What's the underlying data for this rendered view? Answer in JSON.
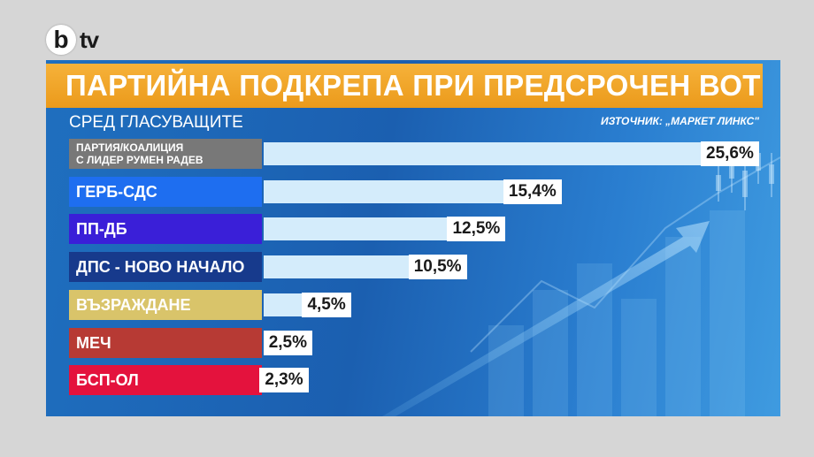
{
  "branding": {
    "logo_letter": "b",
    "logo_suffix": "tv"
  },
  "chart_data": {
    "type": "bar",
    "orientation": "horizontal",
    "title": "ПАРТИЙНА ПОДКРЕПА ПРИ ПРЕДСРОЧЕН ВОТ",
    "subtitle": "СРЕД ГЛАСУВАЩИТЕ",
    "source": "ИЗТОЧНИК: „МАРКЕТ ЛИНКС\"",
    "xlim": [
      0,
      25.6
    ],
    "categories": [
      "ПАРТИЯ/КОАЛИЦИЯ С ЛИДЕР РУМЕН РАДЕВ",
      "ГЕРБ-СДС",
      "ПП-ДБ",
      "ДПС - НОВО НАЧАЛО",
      "ВЪЗРАЖДАНЕ",
      "МЕЧ",
      "БСП-ОЛ"
    ],
    "values": [
      25.6,
      15.4,
      12.5,
      10.5,
      4.5,
      2.5,
      2.3
    ],
    "value_labels": [
      "25,6%",
      "15,4%",
      "12,5%",
      "10,5%",
      "4,5%",
      "2,5%",
      "2,3%"
    ],
    "label_lines": [
      [
        "ПАРТИЯ/КОАЛИЦИЯ",
        "С ЛИДЕР РУМЕН РАДЕВ"
      ],
      [
        "ГЕРБ-СДС"
      ],
      [
        "ПП-ДБ"
      ],
      [
        "ДПС - НОВО НАЧАЛО"
      ],
      [
        "ВЪЗРАЖДАНЕ"
      ],
      [
        "МЕЧ"
      ],
      [
        "БСП-ОЛ"
      ]
    ],
    "colors": [
      "#787878",
      "#1e6ef0",
      "#3a1fd8",
      "#173a8c",
      "#d9c46a",
      "#b73a34",
      "#e4123d"
    ],
    "bar_color": "#d4ecfb",
    "grid": false,
    "legend": "none"
  }
}
